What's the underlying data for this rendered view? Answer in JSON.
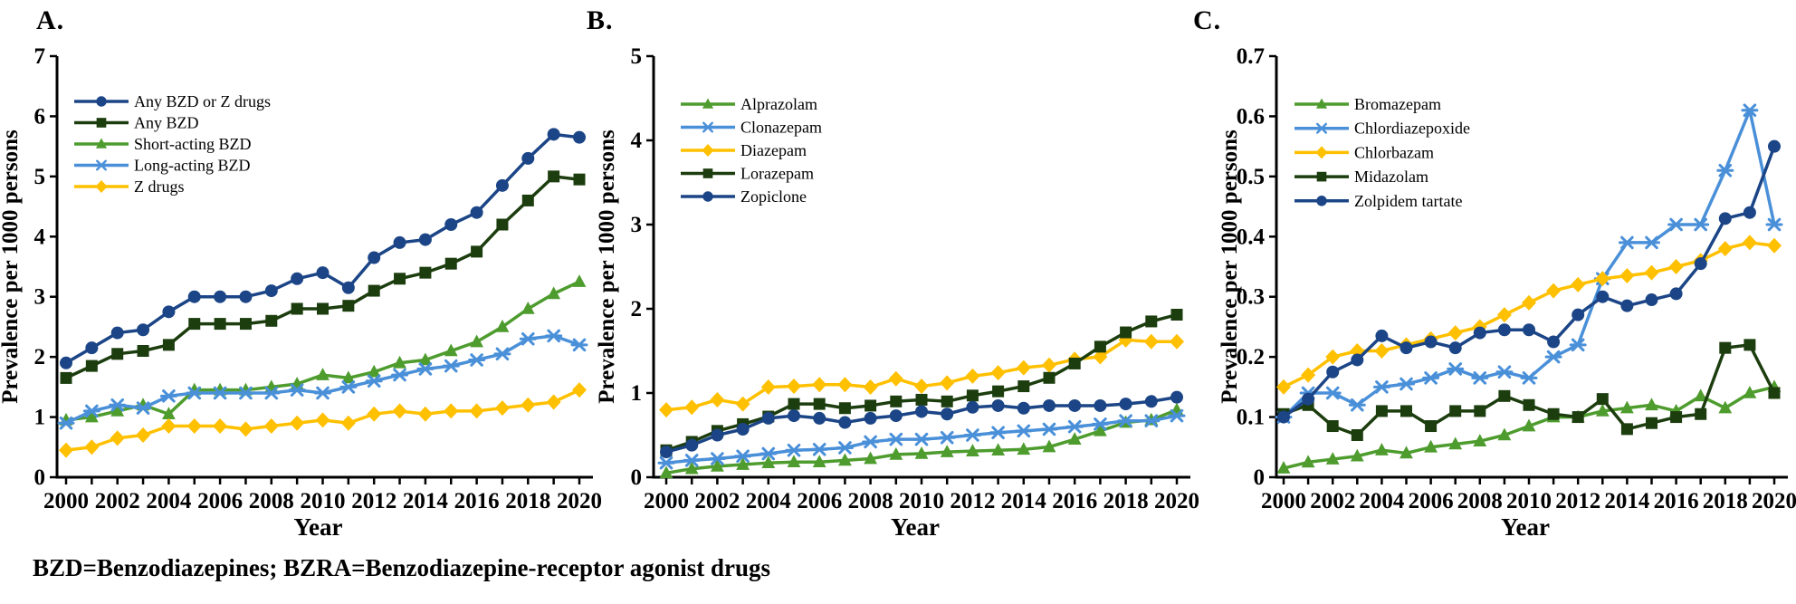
{
  "page": {
    "background": "#ffffff",
    "footnote": "BZD=Benzodiazepines; BZRA=Benzodiazepine-receptor agonist drugs"
  },
  "palette": {
    "navy": "#1B4586",
    "dark_green": "#1C3D0E",
    "green": "#4E9C2E",
    "light_blue": "#4A90D9",
    "gold": "#FFC000",
    "axis": "#000000"
  },
  "chart_data": [
    {
      "label": "A.",
      "type": "line",
      "xlabel": "Year",
      "ylabel": "Prevalence per 1000 persons",
      "ylim": [
        0,
        7
      ],
      "yticks": [
        0,
        1,
        2,
        3,
        4,
        5,
        6,
        7
      ],
      "ytick_labels": [
        "0",
        "1",
        "2",
        "3",
        "4",
        "5",
        "6",
        "7"
      ],
      "years": [
        2000,
        2001,
        2002,
        2003,
        2004,
        2005,
        2006,
        2007,
        2008,
        2009,
        2010,
        2011,
        2012,
        2013,
        2014,
        2015,
        2016,
        2017,
        2018,
        2019,
        2020
      ],
      "xtick_label_years": [
        2000,
        2002,
        2004,
        2006,
        2008,
        2010,
        2012,
        2014,
        2016,
        2018,
        2020
      ],
      "legend_position": "top-left",
      "grid": false,
      "series": [
        {
          "name": "Any BZD or Z drugs",
          "marker": "circle",
          "color": "navy",
          "values": [
            1.9,
            2.15,
            2.4,
            2.45,
            2.75,
            3.0,
            3.0,
            3.0,
            3.1,
            3.3,
            3.4,
            3.15,
            3.65,
            3.9,
            3.95,
            4.2,
            4.4,
            4.85,
            5.3,
            5.7,
            5.65
          ]
        },
        {
          "name": "Any BZD",
          "marker": "square",
          "color": "dark_green",
          "values": [
            1.65,
            1.85,
            2.05,
            2.1,
            2.2,
            2.55,
            2.55,
            2.55,
            2.6,
            2.8,
            2.8,
            2.85,
            3.1,
            3.3,
            3.4,
            3.55,
            3.75,
            4.2,
            4.6,
            5.0,
            4.95
          ]
        },
        {
          "name": "Short-acting BZD",
          "marker": "triangle",
          "color": "green",
          "values": [
            0.95,
            1.0,
            1.1,
            1.2,
            1.05,
            1.45,
            1.45,
            1.45,
            1.5,
            1.55,
            1.7,
            1.65,
            1.75,
            1.9,
            1.95,
            2.1,
            2.25,
            2.5,
            2.8,
            3.05,
            3.25
          ]
        },
        {
          "name": "Long-acting BZD",
          "marker": "asterisk",
          "color": "light_blue",
          "values": [
            0.9,
            1.1,
            1.2,
            1.15,
            1.35,
            1.4,
            1.4,
            1.4,
            1.4,
            1.45,
            1.4,
            1.5,
            1.6,
            1.7,
            1.8,
            1.85,
            1.95,
            2.05,
            2.3,
            2.35,
            2.2
          ]
        },
        {
          "name": "Z drugs",
          "marker": "diamond",
          "color": "gold",
          "values": [
            0.45,
            0.5,
            0.65,
            0.7,
            0.85,
            0.85,
            0.85,
            0.8,
            0.85,
            0.9,
            0.95,
            0.9,
            1.05,
            1.1,
            1.05,
            1.1,
            1.1,
            1.15,
            1.2,
            1.25,
            1.45
          ]
        }
      ]
    },
    {
      "label": "B.",
      "type": "line",
      "xlabel": "Year",
      "ylabel": "Prevalence per 1000 persons",
      "ylim": [
        0,
        5
      ],
      "yticks": [
        0,
        1,
        2,
        3,
        4,
        5
      ],
      "ytick_labels": [
        "0",
        "1",
        "2",
        "3",
        "4",
        "5"
      ],
      "years": [
        2000,
        2001,
        2002,
        2003,
        2004,
        2005,
        2006,
        2007,
        2008,
        2009,
        2010,
        2011,
        2012,
        2013,
        2014,
        2015,
        2016,
        2017,
        2018,
        2019,
        2020
      ],
      "xtick_label_years": [
        2000,
        2002,
        2004,
        2006,
        2008,
        2010,
        2012,
        2014,
        2016,
        2018,
        2020
      ],
      "legend_position": "top-left",
      "grid": false,
      "series": [
        {
          "name": "Alprazolam",
          "marker": "triangle",
          "color": "green",
          "values": [
            0.05,
            0.1,
            0.13,
            0.15,
            0.17,
            0.18,
            0.18,
            0.2,
            0.22,
            0.27,
            0.28,
            0.3,
            0.31,
            0.32,
            0.33,
            0.36,
            0.45,
            0.55,
            0.65,
            0.68,
            0.8
          ]
        },
        {
          "name": "Clonazepam",
          "marker": "asterisk",
          "color": "light_blue",
          "values": [
            0.17,
            0.2,
            0.22,
            0.25,
            0.28,
            0.32,
            0.33,
            0.35,
            0.42,
            0.45,
            0.45,
            0.47,
            0.5,
            0.53,
            0.55,
            0.57,
            0.6,
            0.63,
            0.67,
            0.67,
            0.73
          ]
        },
        {
          "name": "Diazepam",
          "marker": "diamond",
          "color": "gold",
          "values": [
            0.8,
            0.83,
            0.92,
            0.87,
            1.07,
            1.08,
            1.1,
            1.1,
            1.07,
            1.17,
            1.08,
            1.12,
            1.2,
            1.24,
            1.3,
            1.33,
            1.4,
            1.43,
            1.63,
            1.61,
            1.61
          ]
        },
        {
          "name": "Lorazepam",
          "marker": "square",
          "color": "dark_green",
          "values": [
            0.32,
            0.42,
            0.55,
            0.63,
            0.72,
            0.87,
            0.87,
            0.82,
            0.85,
            0.9,
            0.92,
            0.9,
            0.97,
            1.02,
            1.08,
            1.18,
            1.35,
            1.55,
            1.72,
            1.85,
            1.93
          ]
        },
        {
          "name": "Zopiclone",
          "marker": "circle",
          "color": "navy",
          "values": [
            0.3,
            0.38,
            0.5,
            0.57,
            0.7,
            0.73,
            0.7,
            0.65,
            0.7,
            0.73,
            0.78,
            0.75,
            0.83,
            0.85,
            0.82,
            0.85,
            0.85,
            0.85,
            0.87,
            0.9,
            0.95
          ]
        }
      ]
    },
    {
      "label": "C.",
      "type": "line",
      "xlabel": "Year",
      "ylabel": "Prevalence per 1000 persons",
      "ylim": [
        0,
        0.7
      ],
      "yticks": [
        0,
        0.1,
        0.2,
        0.3,
        0.4,
        0.5,
        0.6,
        0.7
      ],
      "ytick_labels": [
        "0",
        "0.1",
        "0.2",
        "0.3",
        "0.4",
        "0.5",
        "0.6",
        "0.7"
      ],
      "years": [
        2000,
        2001,
        2002,
        2003,
        2004,
        2005,
        2006,
        2007,
        2008,
        2009,
        2010,
        2011,
        2012,
        2013,
        2014,
        2015,
        2016,
        2017,
        2018,
        2019,
        2020
      ],
      "xtick_label_years": [
        2000,
        2002,
        2004,
        2006,
        2008,
        2010,
        2012,
        2014,
        2016,
        2018,
        2020
      ],
      "legend_position": "top-left",
      "grid": false,
      "series": [
        {
          "name": "Bromazepam",
          "marker": "triangle",
          "color": "green",
          "values": [
            0.015,
            0.025,
            0.03,
            0.035,
            0.045,
            0.04,
            0.05,
            0.055,
            0.06,
            0.07,
            0.085,
            0.1,
            0.1,
            0.11,
            0.115,
            0.12,
            0.11,
            0.135,
            0.115,
            0.14,
            0.15
          ]
        },
        {
          "name": "Chlordiazepoxide",
          "marker": "asterisk",
          "color": "light_blue",
          "values": [
            0.1,
            0.14,
            0.14,
            0.12,
            0.15,
            0.155,
            0.165,
            0.18,
            0.165,
            0.175,
            0.165,
            0.2,
            0.22,
            0.33,
            0.39,
            0.39,
            0.42,
            0.42,
            0.51,
            0.61,
            0.42
          ]
        },
        {
          "name": "Chlorbazam",
          "marker": "diamond",
          "color": "gold",
          "values": [
            0.15,
            0.17,
            0.2,
            0.21,
            0.21,
            0.22,
            0.23,
            0.24,
            0.25,
            0.27,
            0.29,
            0.31,
            0.32,
            0.33,
            0.335,
            0.34,
            0.35,
            0.36,
            0.38,
            0.39,
            0.385
          ]
        },
        {
          "name": "Midazolam",
          "marker": "square",
          "color": "dark_green",
          "values": [
            0.105,
            0.12,
            0.085,
            0.07,
            0.11,
            0.11,
            0.085,
            0.11,
            0.11,
            0.135,
            0.12,
            0.105,
            0.1,
            0.13,
            0.08,
            0.09,
            0.1,
            0.105,
            0.215,
            0.22,
            0.14
          ]
        },
        {
          "name": "Zolpidem tartate",
          "marker": "circle",
          "color": "navy",
          "values": [
            0.1,
            0.13,
            0.175,
            0.195,
            0.235,
            0.215,
            0.225,
            0.215,
            0.24,
            0.245,
            0.245,
            0.225,
            0.27,
            0.3,
            0.285,
            0.295,
            0.305,
            0.355,
            0.43,
            0.44,
            0.55
          ]
        }
      ]
    }
  ]
}
